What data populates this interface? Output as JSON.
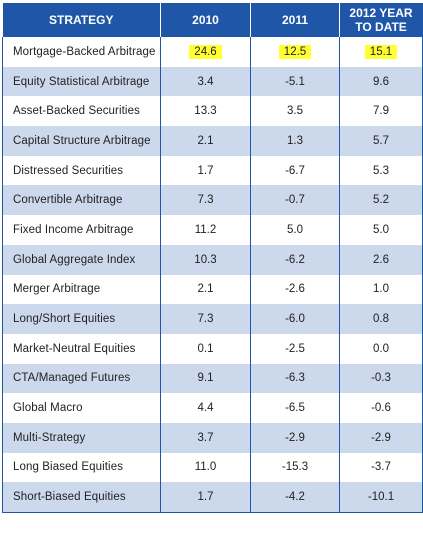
{
  "table": {
    "headers": [
      "STRATEGY",
      "2010",
      "2011",
      "2012 YEAR TO DATE"
    ],
    "header_2012_line1": "2012 YEAR",
    "header_2012_line2": "TO DATE",
    "rows": [
      {
        "strategy": "Mortgage-Backed Arbitrage",
        "y2010": "24.6",
        "y2011": "12.5",
        "y2012": "15.1",
        "highlighted": true
      },
      {
        "strategy": "Equity Statistical Arbitrage",
        "y2010": "3.4",
        "y2011": "-5.1",
        "y2012": "9.6"
      },
      {
        "strategy": "Asset-Backed Securities",
        "y2010": "13.3",
        "y2011": "3.5",
        "y2012": "7.9"
      },
      {
        "strategy": "Capital Structure Arbitrage",
        "y2010": "2.1",
        "y2011": "1.3",
        "y2012": "5.7"
      },
      {
        "strategy": "Distressed Securities",
        "y2010": "1.7",
        "y2011": "-6.7",
        "y2012": "5.3"
      },
      {
        "strategy": "Convertible Arbitrage",
        "y2010": "7.3",
        "y2011": "-0.7",
        "y2012": "5.2"
      },
      {
        "strategy": "Fixed Income Arbitrage",
        "y2010": "11.2",
        "y2011": "5.0",
        "y2012": "5.0"
      },
      {
        "strategy": "Global Aggregate Index",
        "y2010": "10.3",
        "y2011": "-6.2",
        "y2012": "2.6"
      },
      {
        "strategy": "Merger Arbitrage",
        "y2010": "2.1",
        "y2011": "-2.6",
        "y2012": "1.0"
      },
      {
        "strategy": "Long/Short Equities",
        "y2010": "7.3",
        "y2011": "-6.0",
        "y2012": "0.8"
      },
      {
        "strategy": "Market-Neutral Equities",
        "y2010": "0.1",
        "y2011": "-2.5",
        "y2012": "0.0"
      },
      {
        "strategy": "CTA/Managed Futures",
        "y2010": "9.1",
        "y2011": "-6.3",
        "y2012": "-0.3"
      },
      {
        "strategy": "Global Macro",
        "y2010": "4.4",
        "y2011": "-6.5",
        "y2012": "-0.6"
      },
      {
        "strategy": "Multi-Strategy",
        "y2010": "3.7",
        "y2011": "-2.9",
        "y2012": "-2.9"
      },
      {
        "strategy": "Long Biased Equities",
        "y2010": "11.0",
        "y2011": "-15.3",
        "y2012": "-3.7"
      },
      {
        "strategy": "Short-Biased Equities",
        "y2010": "1.7",
        "y2011": "-4.2",
        "y2012": "-10.1"
      }
    ]
  },
  "colors": {
    "header_bg": "#1f56a7",
    "stripe_bg": "#ccd8ec",
    "highlight": "#ffff33"
  }
}
